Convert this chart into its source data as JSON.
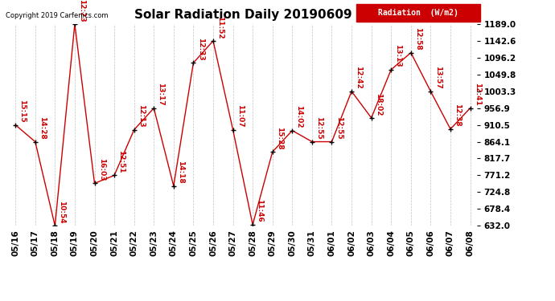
{
  "title": "Solar Radiation Daily 20190609",
  "copyright_text": "Copyright 2019 Carfenics.com",
  "legend_label": "Radiation  (W/m2)",
  "x_labels": [
    "05/16",
    "05/17",
    "05/18",
    "05/19",
    "05/20",
    "05/21",
    "05/22",
    "05/23",
    "05/24",
    "05/25",
    "05/26",
    "05/27",
    "05/28",
    "05/29",
    "05/30",
    "05/31",
    "06/01",
    "06/02",
    "06/03",
    "06/04",
    "06/05",
    "06/06",
    "06/07",
    "06/08"
  ],
  "y_values": [
    910.5,
    864.1,
    632.0,
    1189.0,
    749.0,
    771.2,
    897.0,
    956.9,
    742.0,
    1082.0,
    1142.6,
    897.0,
    635.0,
    836.0,
    895.0,
    864.1,
    864.1,
    1003.3,
    930.0,
    1063.0,
    1110.0,
    1003.3,
    899.0,
    956.9
  ],
  "annotations": [
    "15:15",
    "14:28",
    "10:54",
    "12:23",
    "16:03",
    "12:51",
    "12:13",
    "13:17",
    "14:18",
    "12:33",
    "11:52",
    "11:07",
    "11:46",
    "15:28",
    "14:02",
    "12:55",
    "12:55",
    "12:42",
    "18:02",
    "13:13",
    "12:58",
    "13:57",
    "12:38",
    "12:41"
  ],
  "yticks": [
    632.0,
    678.4,
    724.8,
    771.2,
    817.7,
    864.1,
    910.5,
    956.9,
    1003.3,
    1049.8,
    1096.2,
    1142.6,
    1189.0
  ],
  "ylim": [
    632.0,
    1189.0
  ],
  "line_color": "#cc0000",
  "marker_color": "#000000",
  "background_color": "#ffffff",
  "grid_color": "#999999",
  "legend_bg": "#cc0000",
  "legend_text_color": "#ffffff",
  "title_fontsize": 11,
  "annotation_fontsize": 6.5,
  "tick_fontsize": 7.5,
  "copyright_fontsize": 6
}
